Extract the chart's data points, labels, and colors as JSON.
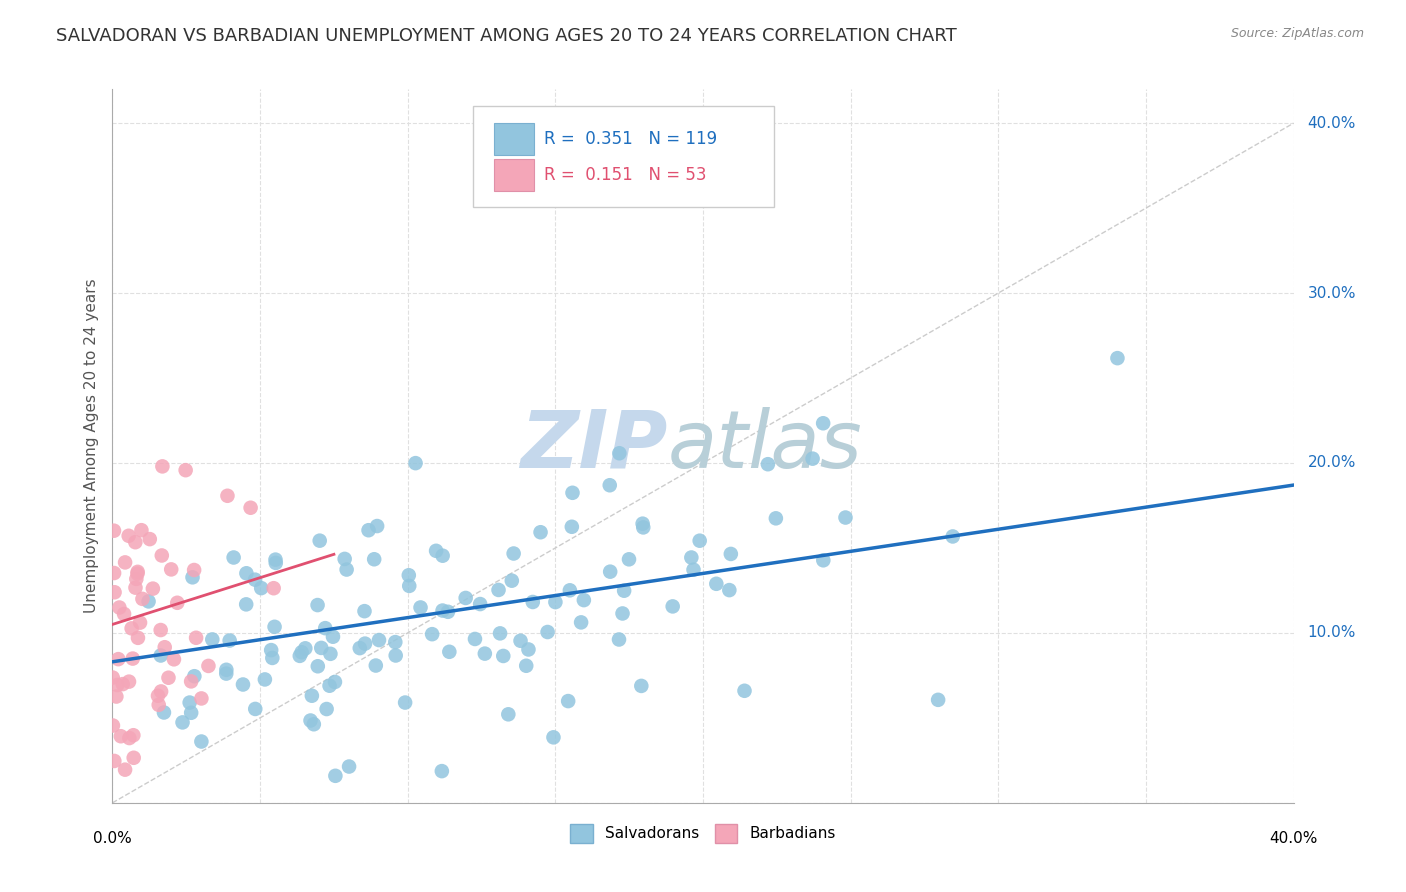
{
  "title": "SALVADORAN VS BARBADIAN UNEMPLOYMENT AMONG AGES 20 TO 24 YEARS CORRELATION CHART",
  "source": "Source: ZipAtlas.com",
  "ylabel": "Unemployment Among Ages 20 to 24 years",
  "xlim": [
    0.0,
    0.4
  ],
  "ylim": [
    0.0,
    0.42
  ],
  "xticks": [
    0.0,
    0.05,
    0.1,
    0.15,
    0.2,
    0.25,
    0.3,
    0.35,
    0.4
  ],
  "yticks": [
    0.0,
    0.1,
    0.2,
    0.3,
    0.4
  ],
  "blue_R": 0.351,
  "blue_N": 119,
  "pink_R": 0.151,
  "pink_N": 53,
  "blue_color": "#92c5de",
  "pink_color": "#f4a6b8",
  "blue_line_color": "#1f6fbf",
  "pink_line_color": "#e05070",
  "diagonal_color": "#cccccc",
  "watermark_zip": "ZIP",
  "watermark_atlas": "atlas",
  "watermark_color_zip": "#c5d8ec",
  "watermark_color_atlas": "#b8cfd8",
  "background_color": "#ffffff",
  "grid_color": "#e0e0e0",
  "title_fontsize": 13,
  "axis_label_fontsize": 11,
  "tick_fontsize": 11,
  "legend_fontsize": 12,
  "blue_seed": 42,
  "pink_seed": 7,
  "blue_intercept": 0.083,
  "blue_slope": 0.26,
  "pink_intercept": 0.105,
  "pink_slope": 0.55
}
